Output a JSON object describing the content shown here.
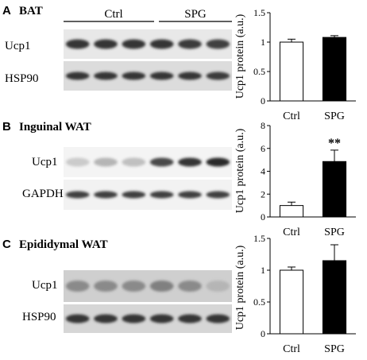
{
  "panels": [
    {
      "letter": "A",
      "title": "BAT",
      "blot": {
        "groups": [
          "Ctrl",
          "SPG"
        ],
        "rows": [
          {
            "label": "Ucp1",
            "intensity": [
              0.85,
              0.85,
              0.85,
              0.85,
              0.82,
              0.8
            ]
          },
          {
            "label": "HSP90",
            "intensity": [
              0.85,
              0.85,
              0.85,
              0.85,
              0.85,
              0.82
            ]
          }
        ]
      }
    },
    {
      "letter": "B",
      "title": "Inguinal WAT",
      "blot": {
        "groups": [],
        "rows": [
          {
            "label": "Ucp1",
            "intensity": [
              0.15,
              0.25,
              0.2,
              0.75,
              0.85,
              0.9
            ]
          },
          {
            "label": "GAPDH",
            "intensity": [
              0.8,
              0.8,
              0.8,
              0.8,
              0.8,
              0.8
            ]
          }
        ]
      }
    },
    {
      "letter": "C",
      "title": "Epididymal WAT",
      "blot": {
        "groups": [],
        "rows": [
          {
            "label": "Ucp1",
            "intensity": [
              0.45,
              0.45,
              0.45,
              0.5,
              0.45,
              0.25
            ]
          },
          {
            "label": "HSP90",
            "intensity": [
              0.85,
              0.85,
              0.85,
              0.85,
              0.85,
              0.85
            ]
          }
        ]
      }
    }
  ],
  "chart_data": [
    {
      "type": "bar",
      "categories": [
        "Ctrl",
        "SPG"
      ],
      "values": [
        1.0,
        1.08
      ],
      "errors": [
        0.05,
        0.03
      ],
      "bar_fill": [
        "#ffffff",
        "#000000"
      ],
      "ylabel": "Ucp1 protein (a.u.)",
      "ylim": [
        0,
        1.5
      ],
      "yticks": [
        "0",
        "0.5",
        "1",
        "1.5"
      ],
      "annotations": []
    },
    {
      "type": "bar",
      "categories": [
        "Ctrl",
        "SPG"
      ],
      "values": [
        1.0,
        4.85
      ],
      "errors": [
        0.3,
        1.0
      ],
      "bar_fill": [
        "#ffffff",
        "#000000"
      ],
      "ylabel": "Ucp1 protein (a.u.)",
      "ylim": [
        0,
        8
      ],
      "yticks": [
        "0",
        "2",
        "4",
        "6",
        "8"
      ],
      "annotations": [
        {
          "category": "SPG",
          "text": "**"
        }
      ]
    },
    {
      "type": "bar",
      "categories": [
        "Ctrl",
        "SPG"
      ],
      "values": [
        1.0,
        1.15
      ],
      "errors": [
        0.05,
        0.25
      ],
      "bar_fill": [
        "#ffffff",
        "#000000"
      ],
      "ylabel": "Ucp1 protein (a.u.)",
      "ylim": [
        0,
        1.5
      ],
      "yticks": [
        "0",
        "0.5",
        "1",
        "1.5"
      ],
      "annotations": []
    }
  ]
}
